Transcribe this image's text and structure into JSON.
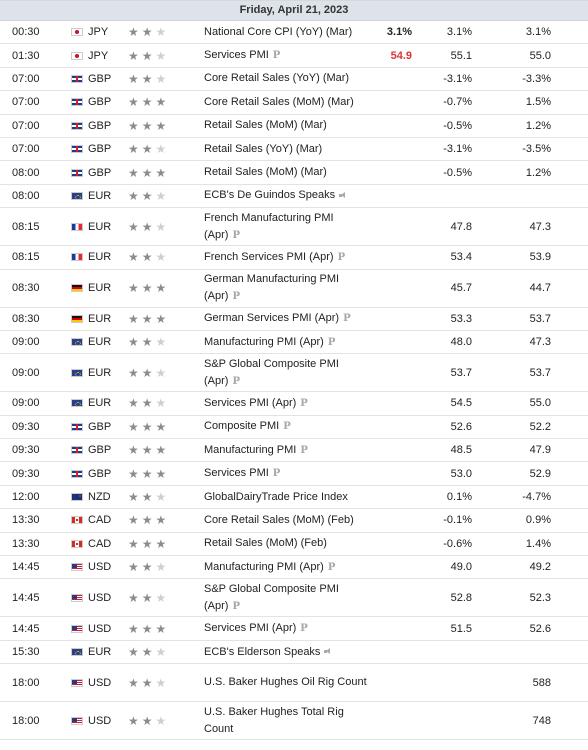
{
  "date_header": "Friday, April 21, 2023",
  "colors": {
    "header_bg": "#dde3ea",
    "star_active": "#8c8c8c",
    "star_inactive": "#cfcfcf",
    "actual_red": "#e03333"
  },
  "rows": [
    {
      "time": "00:30",
      "flag": "jpy",
      "currency": "JPY",
      "importance": 2,
      "event": "National Core CPI (YoY) (Mar)",
      "actual": "3.1%",
      "actual_color": "",
      "forecast": "3.1%",
      "previous": "3.1%"
    },
    {
      "time": "01:30",
      "flag": "jpy",
      "currency": "JPY",
      "importance": 2,
      "event": "Services PMI",
      "pre": true,
      "actual": "54.9",
      "actual_color": "red",
      "forecast": "55.1",
      "previous": "55.0"
    },
    {
      "time": "07:00",
      "flag": "gbp",
      "currency": "GBP",
      "importance": 2,
      "event": "Core Retail Sales (YoY) (Mar)",
      "forecast": "-3.1%",
      "previous": "-3.3%"
    },
    {
      "time": "07:00",
      "flag": "gbp",
      "currency": "GBP",
      "importance": 3,
      "event": "Core Retail Sales (MoM) (Mar)",
      "forecast": "-0.7%",
      "previous": "1.5%"
    },
    {
      "time": "07:00",
      "flag": "gbp",
      "currency": "GBP",
      "importance": 3,
      "event": "Retail Sales (MoM) (Mar)",
      "forecast": "-0.5%",
      "previous": "1.2%"
    },
    {
      "time": "07:00",
      "flag": "gbp",
      "currency": "GBP",
      "importance": 2,
      "event": "Retail Sales (YoY) (Mar)",
      "forecast": "-3.1%",
      "previous": "-3.5%"
    },
    {
      "time": "08:00",
      "flag": "gbp",
      "currency": "GBP",
      "importance": 3,
      "event": "Retail Sales (MoM) (Mar)",
      "forecast": "-0.5%",
      "previous": "1.2%"
    },
    {
      "time": "08:00",
      "flag": "eur",
      "currency": "EUR",
      "importance": 2,
      "event": "ECB's De Guindos Speaks",
      "speech": true
    },
    {
      "time": "08:15",
      "flag": "fr",
      "currency": "EUR",
      "importance": 2,
      "event": "French Manufacturing PMI (Apr)",
      "pre": true,
      "tall": true,
      "forecast": "47.8",
      "previous": "47.3"
    },
    {
      "time": "08:15",
      "flag": "fr",
      "currency": "EUR",
      "importance": 2,
      "event": "French Services PMI (Apr)",
      "pre": true,
      "forecast": "53.4",
      "previous": "53.9"
    },
    {
      "time": "08:30",
      "flag": "de",
      "currency": "EUR",
      "importance": 3,
      "event": "German Manufacturing PMI (Apr)",
      "pre": true,
      "tall": true,
      "forecast": "45.7",
      "previous": "44.7"
    },
    {
      "time": "08:30",
      "flag": "de",
      "currency": "EUR",
      "importance": 3,
      "event": "German Services PMI (Apr)",
      "pre": true,
      "forecast": "53.3",
      "previous": "53.7"
    },
    {
      "time": "09:00",
      "flag": "eur",
      "currency": "EUR",
      "importance": 2,
      "event": "Manufacturing PMI (Apr)",
      "pre": true,
      "forecast": "48.0",
      "previous": "47.3"
    },
    {
      "time": "09:00",
      "flag": "eur",
      "currency": "EUR",
      "importance": 2,
      "event": "S&P Global Composite PMI (Apr)",
      "pre": true,
      "tall": true,
      "forecast": "53.7",
      "previous": "53.7"
    },
    {
      "time": "09:00",
      "flag": "eur",
      "currency": "EUR",
      "importance": 2,
      "event": "Services PMI (Apr)",
      "pre": true,
      "forecast": "54.5",
      "previous": "55.0"
    },
    {
      "time": "09:30",
      "flag": "gbp",
      "currency": "GBP",
      "importance": 3,
      "event": "Composite PMI",
      "pre": true,
      "forecast": "52.6",
      "previous": "52.2"
    },
    {
      "time": "09:30",
      "flag": "gbp",
      "currency": "GBP",
      "importance": 3,
      "event": "Manufacturing PMI",
      "pre": true,
      "forecast": "48.5",
      "previous": "47.9"
    },
    {
      "time": "09:30",
      "flag": "gbp",
      "currency": "GBP",
      "importance": 3,
      "event": "Services PMI",
      "pre": true,
      "forecast": "53.0",
      "previous": "52.9"
    },
    {
      "time": "12:00",
      "flag": "nzd",
      "currency": "NZD",
      "importance": 2,
      "event": "GlobalDairyTrade Price Index",
      "forecast": "0.1%",
      "previous": "-4.7%"
    },
    {
      "time": "13:30",
      "flag": "cad",
      "currency": "CAD",
      "importance": 3,
      "event": "Core Retail Sales (MoM) (Feb)",
      "forecast": "-0.1%",
      "previous": "0.9%"
    },
    {
      "time": "13:30",
      "flag": "cad",
      "currency": "CAD",
      "importance": 3,
      "event": "Retail Sales (MoM) (Feb)",
      "forecast": "-0.6%",
      "previous": "1.4%"
    },
    {
      "time": "14:45",
      "flag": "usd",
      "currency": "USD",
      "importance": 2,
      "event": "Manufacturing PMI (Apr)",
      "pre": true,
      "forecast": "49.0",
      "previous": "49.2"
    },
    {
      "time": "14:45",
      "flag": "usd",
      "currency": "USD",
      "importance": 2,
      "event": "S&P Global Composite PMI (Apr)",
      "pre": true,
      "tall": true,
      "forecast": "52.8",
      "previous": "52.3"
    },
    {
      "time": "14:45",
      "flag": "usd",
      "currency": "USD",
      "importance": 3,
      "event": "Services PMI (Apr)",
      "pre": true,
      "forecast": "51.5",
      "previous": "52.6"
    },
    {
      "time": "15:30",
      "flag": "eur",
      "currency": "EUR",
      "importance": 2,
      "event": "ECB's Elderson Speaks",
      "speech": true
    },
    {
      "time": "18:00",
      "flag": "usd",
      "currency": "USD",
      "importance": 2,
      "event": "U.S. Baker Hughes Oil Rig Count",
      "tall": true,
      "previous": "588"
    },
    {
      "time": "18:00",
      "flag": "usd",
      "currency": "USD",
      "importance": 2,
      "event": "U.S. Baker Hughes Total Rig Count",
      "tall": true,
      "previous": "748"
    }
  ]
}
